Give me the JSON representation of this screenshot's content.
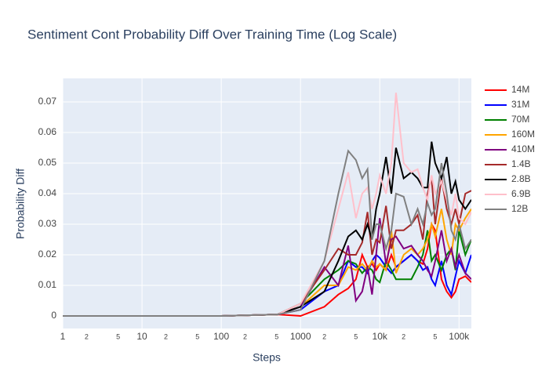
{
  "chart_data": {
    "type": "line",
    "title": "Sentiment Cont Probability Diff Over Training Time (Log Scale)",
    "x_label": "Steps",
    "y_label": "Probability Diff",
    "x_log": true,
    "grid": true,
    "legend_position": "right",
    "x": [
      1,
      10,
      100,
      512,
      1000,
      2000,
      3000,
      4000,
      5000,
      6000,
      7000,
      8000,
      9000,
      10000,
      12000,
      14000,
      16000,
      20000,
      25000,
      30000,
      35000,
      40000,
      45000,
      50000,
      60000,
      70000,
      80000,
      90000,
      100000,
      120000,
      143000
    ],
    "xlim": [
      1,
      143000
    ],
    "ylim": [
      -0.0041,
      0.0777
    ],
    "xticks": [
      1,
      {
        "value": 2,
        "label": "2"
      },
      {
        "value": 5,
        "label": "5"
      },
      10,
      {
        "value": 20,
        "label": "2"
      },
      {
        "value": 50,
        "label": "5"
      },
      100,
      {
        "value": 200,
        "label": "2"
      },
      {
        "value": 500,
        "label": "5"
      },
      1000,
      {
        "value": 2000,
        "label": "2"
      },
      {
        "value": 5000,
        "label": "5"
      },
      {
        "value": 10000,
        "label": "10k"
      },
      {
        "value": 20000,
        "label": "2"
      },
      {
        "value": 50000,
        "label": "5"
      },
      {
        "value": 100000,
        "label": "100k"
      }
    ],
    "yticks": [
      0,
      0.01,
      0.02,
      0.03,
      0.04,
      0.05,
      0.06,
      0.07
    ],
    "series": [
      {
        "name": "14M",
        "color": "#ff0000",
        "values": [
          0,
          0,
          0,
          0.0005,
          0,
          0.003,
          0.007,
          0.009,
          0.012,
          0.02,
          0.016,
          0.017,
          0.015,
          0.017,
          0.015,
          0.02,
          0.016,
          0.018,
          0.02,
          0.018,
          0.017,
          0.022,
          0.03,
          0.028,
          0.012,
          0.008,
          0.006,
          0.008,
          0.012,
          0.013,
          0.011
        ]
      },
      {
        "name": "31M",
        "color": "#0000ff",
        "values": [
          0,
          0,
          0,
          0.0005,
          0.002,
          0.008,
          0.01,
          0.018,
          0.016,
          0.016,
          0.014,
          0.018,
          0.02,
          0.019,
          0.016,
          0.014,
          0.016,
          0.018,
          0.02,
          0.018,
          0.015,
          0.016,
          0.012,
          0.01,
          0.018,
          0.01,
          0.007,
          0.013,
          0.018,
          0.014,
          0.02
        ]
      },
      {
        "name": "70M",
        "color": "#008000",
        "values": [
          0,
          0,
          0,
          0.0005,
          0.004,
          0.012,
          0.015,
          0.018,
          0.017,
          0.014,
          0.016,
          0.015,
          0.012,
          0.011,
          0.018,
          0.015,
          0.012,
          0.012,
          0.012,
          0.016,
          0.02,
          0.028,
          0.018,
          0.02,
          0.015,
          0.02,
          0.022,
          0.015,
          0.028,
          0.02,
          0.025
        ]
      },
      {
        "name": "160M",
        "color": "#ffa500",
        "values": [
          0,
          0,
          0,
          0.0005,
          0.003,
          0.01,
          0.01,
          0.016,
          0.015,
          0.017,
          0.015,
          0.018,
          0.016,
          0.017,
          0.015,
          0.028,
          0.014,
          0.02,
          0.022,
          0.02,
          0.022,
          0.025,
          0.03,
          0.026,
          0.035,
          0.025,
          0.02,
          0.03,
          0.028,
          0.032,
          0.035
        ]
      },
      {
        "name": "410M",
        "color": "#800080",
        "values": [
          0,
          0,
          0,
          0.0005,
          0.003,
          0.016,
          0.01,
          0.023,
          0.005,
          0.008,
          0.016,
          0.007,
          0.02,
          0.032,
          0.017,
          0.025,
          0.026,
          0.022,
          0.023,
          0.02,
          0.018,
          0.015,
          0.013,
          0.018,
          0.028,
          0.018,
          0.022,
          0.016,
          0.02,
          0.014,
          0.012
        ]
      },
      {
        "name": "1.4B",
        "color": "#a52a2a",
        "values": [
          0,
          0,
          0,
          0.0005,
          0.004,
          0.015,
          0.022,
          0.02,
          0.02,
          0.024,
          0.034,
          0.02,
          0.025,
          0.024,
          0.036,
          0.022,
          0.028,
          0.028,
          0.03,
          0.033,
          0.025,
          0.04,
          0.045,
          0.03,
          0.045,
          0.035,
          0.03,
          0.035,
          0.03,
          0.04,
          0.041
        ]
      },
      {
        "name": "2.8B",
        "color": "#000000",
        "values": [
          0,
          0,
          0,
          0.0005,
          0.003,
          0.008,
          0.018,
          0.026,
          0.028,
          0.025,
          0.03,
          0.025,
          0.035,
          0.04,
          0.052,
          0.04,
          0.055,
          0.045,
          0.047,
          0.045,
          0.042,
          0.042,
          0.057,
          0.05,
          0.045,
          0.052,
          0.04,
          0.044,
          0.038,
          0.035,
          0.038
        ]
      },
      {
        "name": "6.9B",
        "color": "#ffc0cb",
        "values": [
          0,
          0,
          0,
          0.0005,
          0.004,
          0.018,
          0.035,
          0.047,
          0.032,
          0.04,
          0.042,
          0.035,
          0.04,
          0.046,
          0.04,
          0.05,
          0.073,
          0.05,
          0.047,
          0.048,
          0.042,
          0.038,
          0.046,
          0.04,
          0.044,
          0.038,
          0.033,
          0.04,
          0.032,
          0.03,
          0.034
        ]
      },
      {
        "name": "12B",
        "color": "#808080",
        "values": [
          0,
          0,
          0,
          0.0005,
          0.002,
          0.018,
          0.04,
          0.054,
          0.051,
          0.045,
          0.048,
          0.025,
          0.03,
          0.03,
          0.022,
          0.028,
          0.04,
          0.039,
          0.03,
          0.035,
          0.03,
          0.037,
          0.033,
          0.035,
          0.05,
          0.04,
          0.028,
          0.025,
          0.03,
          0.022,
          0.025
        ]
      }
    ]
  }
}
